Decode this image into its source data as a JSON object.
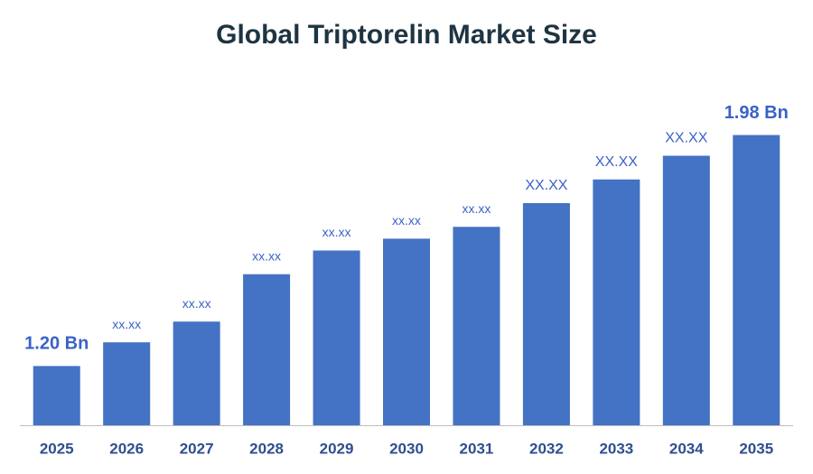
{
  "chart_data": {
    "type": "bar",
    "title": "Global Triptorelin Market Size",
    "categories": [
      "2025",
      "2026",
      "2027",
      "2028",
      "2029",
      "2030",
      "2031",
      "2032",
      "2033",
      "2034",
      "2035"
    ],
    "values": [
      1.2,
      1.28,
      1.35,
      1.51,
      1.59,
      1.63,
      1.67,
      1.75,
      1.83,
      1.91,
      1.98
    ],
    "value_labels": [
      "1.20 Bn",
      "xx.xx",
      "xx.xx",
      "xx.xx",
      "xx.xx",
      "xx.xx",
      "xx.xx",
      "XX.XX",
      "XX.XX",
      "XX.XX",
      "1.98 Bn"
    ],
    "color": "#4472c4",
    "ylim": [
      1.0,
      2.0
    ]
  }
}
